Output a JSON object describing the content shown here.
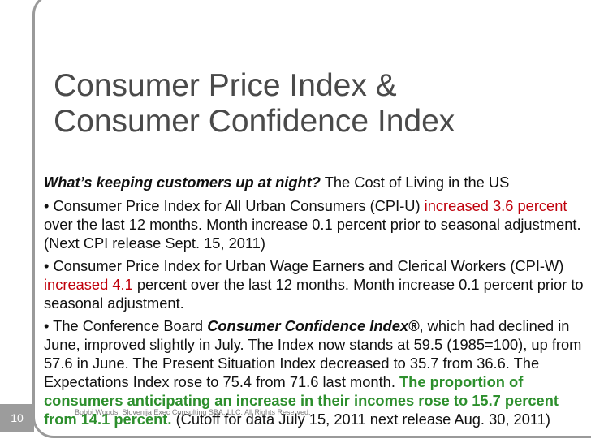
{
  "title": {
    "line1": "Consumer Price Index &",
    "line2": "Consumer Confidence Index"
  },
  "lead": {
    "question": "What’s keeping customers up at night?",
    "rest": " The Cost of Living in the US"
  },
  "cpi_u": {
    "text1": "• Consumer Price Index for All Urban Consumers (CPI-U) ",
    "highlight": "increased 3.6 percent",
    "text2": " over the last 12 months. Month increase 0.1 percent prior to seasonal adjustment. (Next CPI release Sept. 15, 2011)"
  },
  "cpi_w": {
    "text1": "• Consumer Price Index for Urban Wage Earners and Clerical Workers (CPI-W) ",
    "highlight": "increased 4.1",
    "text2": " percent over the last 12 months. Month increase 0.1 percent prior to seasonal adjustment."
  },
  "cci": {
    "text1": "• The Conference Board ",
    "index_name": "Consumer Confidence Index®",
    "text2": ", which had declined in June, improved slightly in July. The Index now stands at 59.5 (1985=100), up from 57.6 in June. The Present Situation Index decreased to 35.7 from 36.6. The Expectations Index rose to 75.4 from 71.6 last month. ",
    "highlight": "The proportion of consumers anticipating an increase in their incomes rose to 15.7 percent from 14.1 percent.",
    "text3": " (Cutoff for data July 15, 2011 next release Aug. 30, 2011)"
  },
  "slide_number": "10",
  "footer": "Bobbi Woods, Slovenija Exec Consulting SBA, LLC. All Rights Reserved."
}
